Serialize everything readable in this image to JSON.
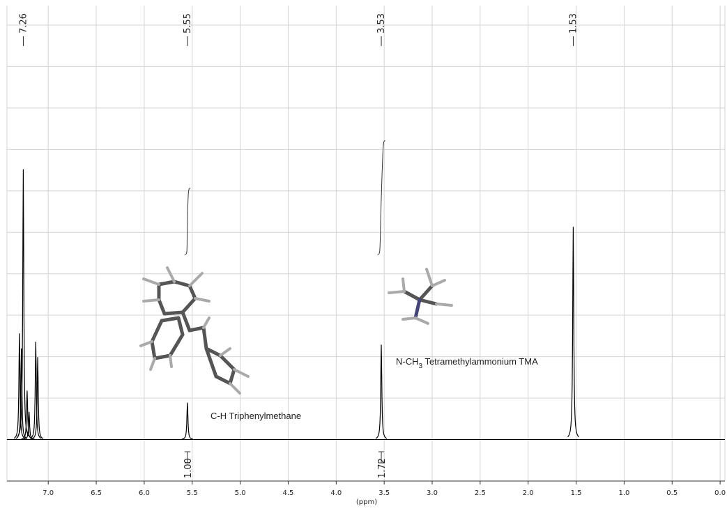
{
  "chart_data": {
    "type": "nmr",
    "xlabel": "(ppm)",
    "xlim": [
      7.43,
      -0.05
    ],
    "ylim": [
      -1,
      10.47
    ],
    "xticks": [
      {
        "value": 7,
        "label": "7.0"
      },
      6.5,
      {
        "value": 6,
        "label": "6.0"
      },
      5.5,
      {
        "value": 5,
        "label": "5.0"
      },
      4.5,
      {
        "value": 4,
        "label": "4.0"
      },
      3.5,
      {
        "value": 3,
        "label": "3.0"
      },
      2.5,
      {
        "value": 2,
        "label": "2.0"
      },
      1.5,
      {
        "value": 1,
        "label": "1.0"
      },
      0.5,
      {
        "value": 0,
        "label": "0.0"
      }
    ],
    "yticks": [
      0,
      1,
      2,
      3,
      4,
      5,
      6,
      7,
      8,
      9,
      10
    ],
    "grid": true,
    "color": "#000000",
    "peaks": {
      "x": [
        7.3,
        7.28,
        7.26,
        7.22,
        7.2,
        7.13,
        7.11,
        5.55,
        3.53,
        1.53
      ],
      "values": [
        2.56,
        2.2,
        6.52,
        1.18,
        0.67,
        2.36,
        1.99,
        0.89,
        2.29,
        5.13
      ]
    },
    "peak_labels": [
      7.26,
      5.55,
      3.53,
      1.53
    ],
    "integrals": [
      {
        "from": 5.58,
        "to": 5.52,
        "value": 1,
        "label": "1.00"
      },
      {
        "from": 3.57,
        "to": 3.49,
        "value": 1.72,
        "label": "1.72"
      }
    ],
    "annotations": [
      {
        "text": "C-H Triphenylmethane"
      },
      {
        "text": "N-CH",
        "subscript": "3",
        "text_after": " Tetramethylammonium TMA"
      }
    ]
  }
}
